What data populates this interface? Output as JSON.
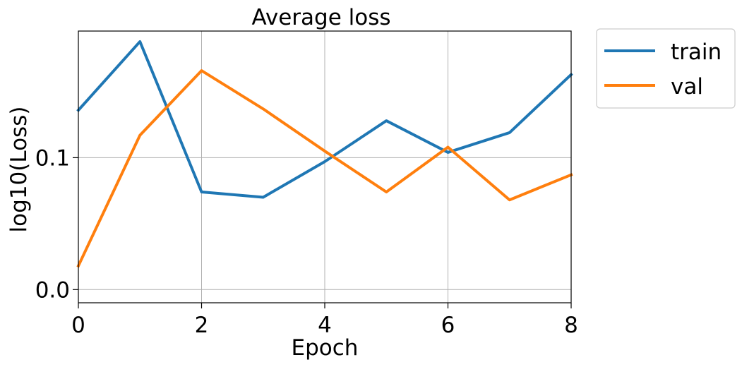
{
  "chart_data": {
    "type": "line",
    "title": "Average loss",
    "xlabel": "Epoch",
    "ylabel": "log10(Loss)",
    "xlim": [
      0,
      8
    ],
    "ylim": [
      -0.01,
      0.196
    ],
    "xticks": [
      0,
      2,
      4,
      6,
      8
    ],
    "xtick_labels": [
      "0",
      "2",
      "4",
      "6",
      "8"
    ],
    "yticks": [
      0.0,
      0.1
    ],
    "ytick_labels": [
      "0.0",
      "0.1"
    ],
    "grid": true,
    "legend_position": "outside-top-right",
    "x": [
      0,
      1,
      2,
      3,
      4,
      5,
      6,
      7,
      8
    ],
    "series": [
      {
        "name": "train",
        "color": "#1f77b4",
        "values": [
          0.136,
          0.188,
          0.074,
          0.07,
          0.097,
          0.128,
          0.104,
          0.119,
          0.163
        ]
      },
      {
        "name": "val",
        "color": "#ff7f0e",
        "values": [
          0.018,
          0.117,
          0.166,
          0.137,
          0.105,
          0.074,
          0.108,
          0.068,
          0.087
        ]
      }
    ]
  }
}
